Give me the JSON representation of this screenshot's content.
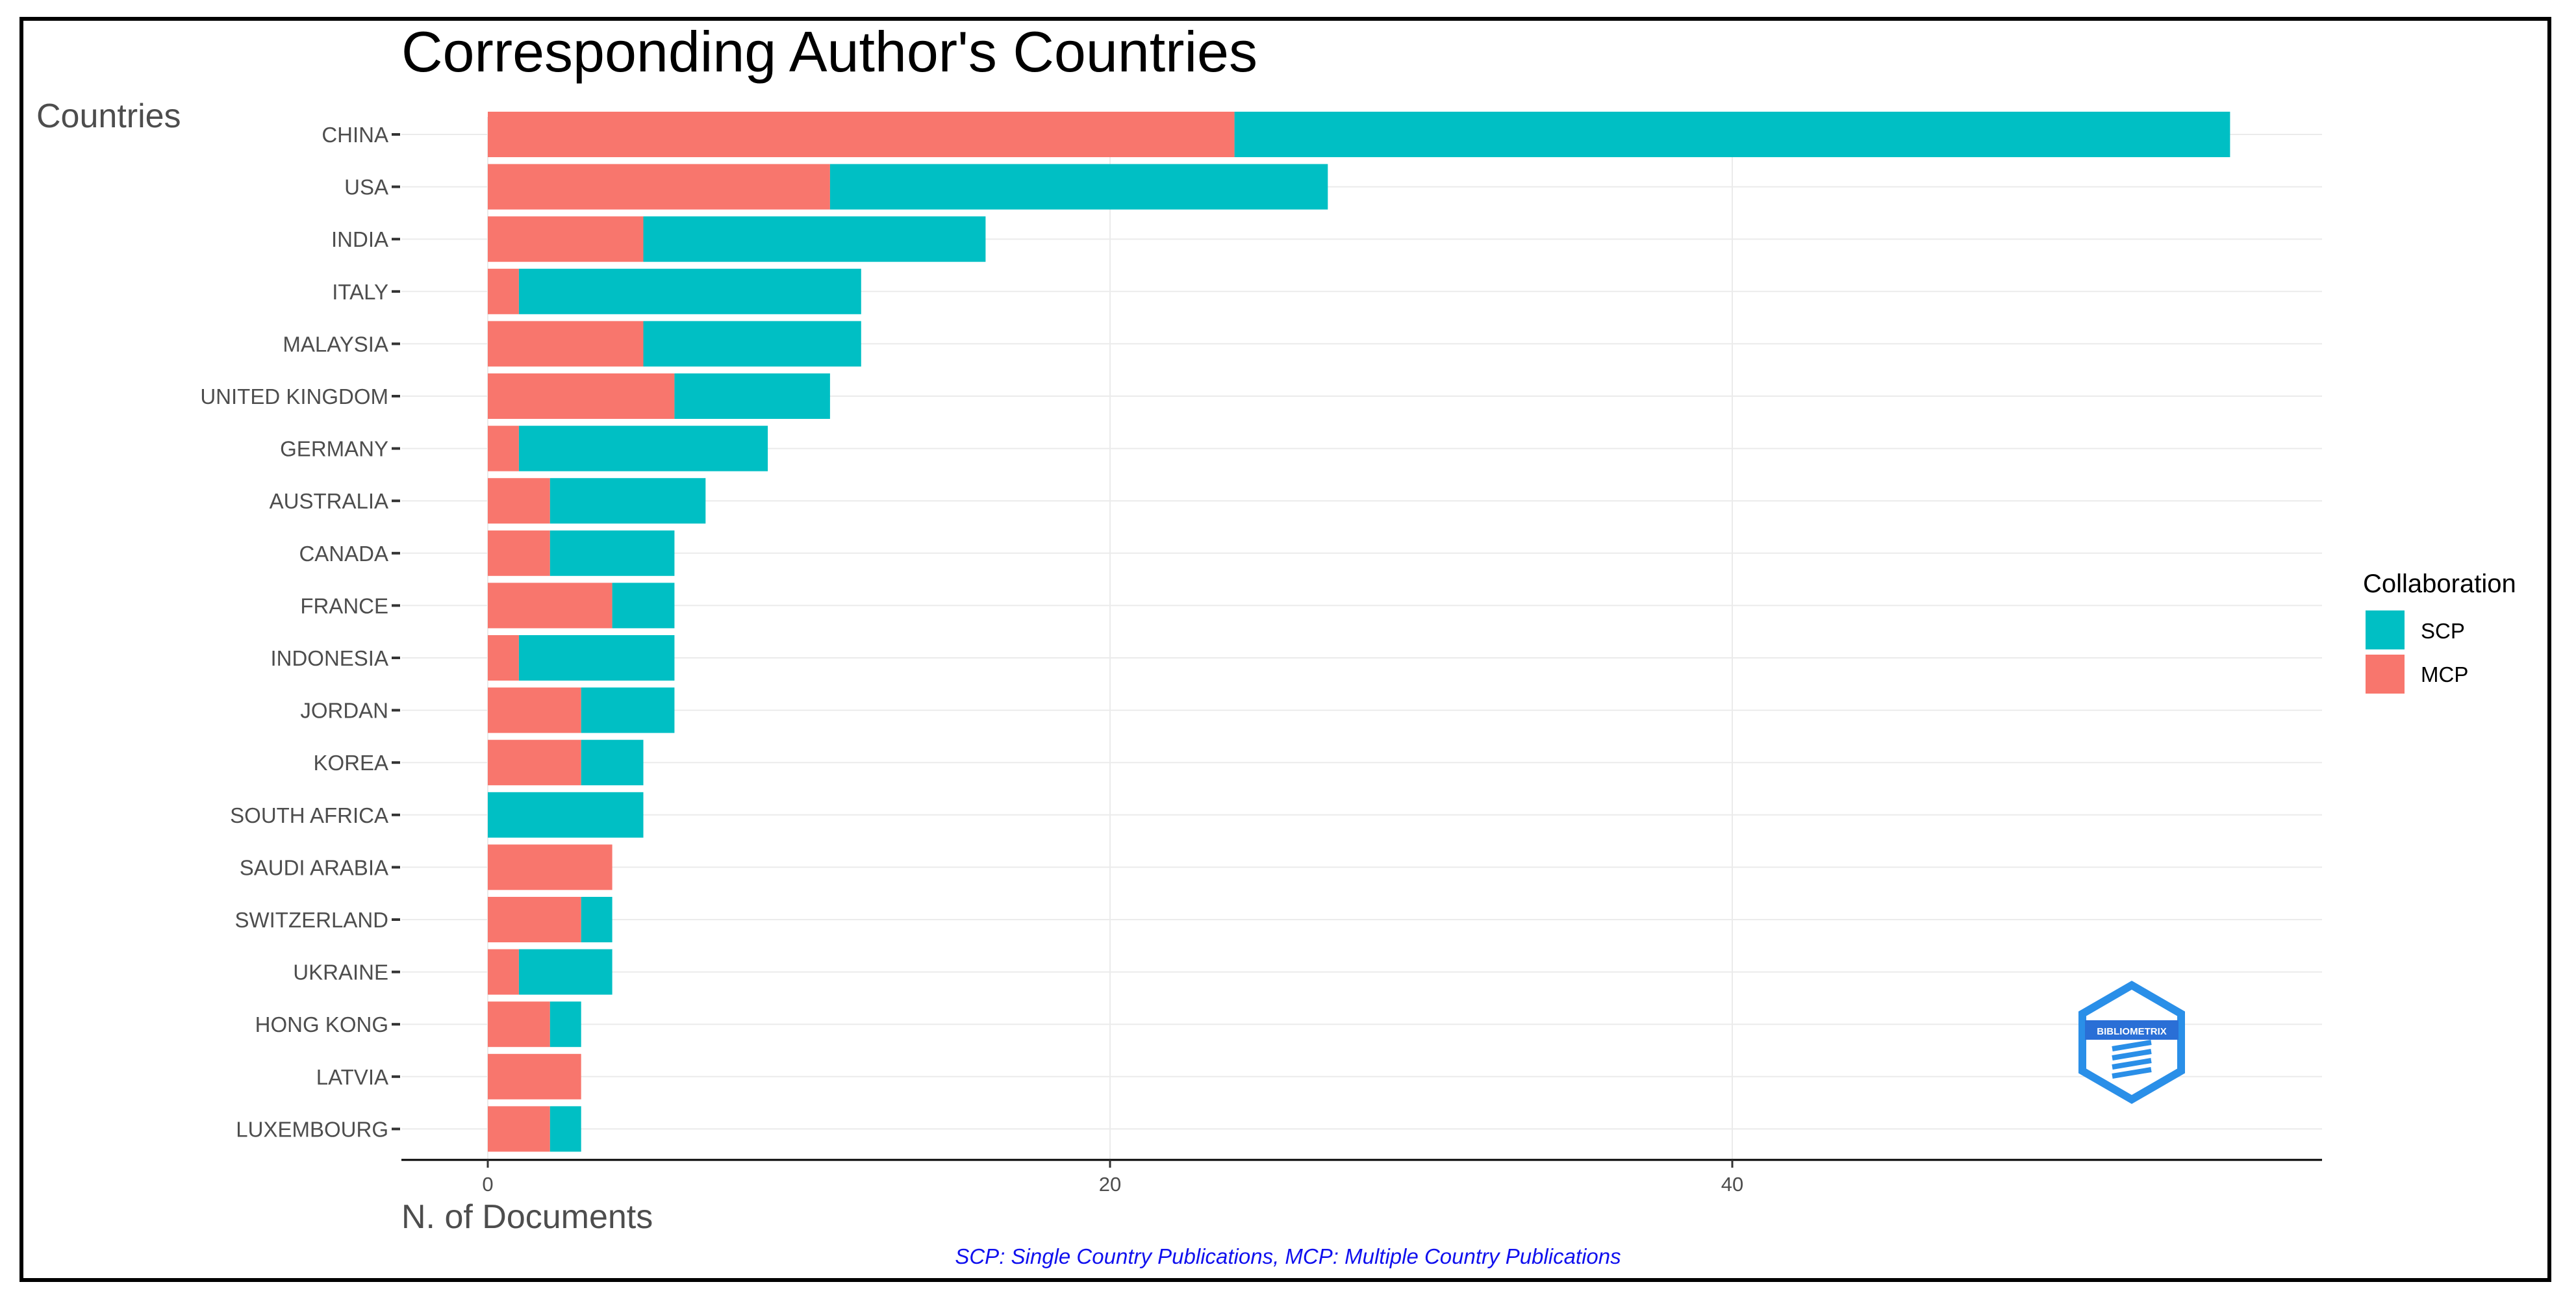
{
  "chart_data": {
    "type": "bar",
    "orientation": "horizontal",
    "stacked": true,
    "title": "Corresponding Author's Countries",
    "xlabel": "N. of Documents",
    "ylabel": "Countries",
    "xlim": [
      0,
      58
    ],
    "xticks": [
      0,
      20,
      40
    ],
    "grid": true,
    "legend_title": "Collaboration",
    "legend_position": "right",
    "categories": [
      "CHINA",
      "USA",
      "INDIA",
      "ITALY",
      "MALAYSIA",
      "UNITED KINGDOM",
      "GERMANY",
      "AUSTRALIA",
      "CANADA",
      "FRANCE",
      "INDONESIA",
      "JORDAN",
      "KOREA",
      "SOUTH AFRICA",
      "SAUDI ARABIA",
      "SWITZERLAND",
      "UKRAINE",
      "HONG KONG",
      "LATVIA",
      "LUXEMBOURG"
    ],
    "series": [
      {
        "name": "SCP",
        "color": "#00BFC4",
        "values": [
          32,
          16,
          11,
          11,
          7,
          5,
          8,
          5,
          4,
          2,
          5,
          3,
          2,
          5,
          0,
          1,
          3,
          1,
          0,
          1
        ]
      },
      {
        "name": "MCP",
        "color": "#F8766D",
        "values": [
          24,
          11,
          5,
          1,
          5,
          6,
          1,
          2,
          2,
          4,
          1,
          3,
          3,
          0,
          4,
          3,
          1,
          2,
          3,
          2
        ]
      }
    ]
  },
  "footnote": "SCP: Single Country Publications, MCP: Multiple Country Publications",
  "logo": {
    "text": "BIBLIOMETRIX",
    "icon": "bibliometrix-hexagon-logo"
  }
}
